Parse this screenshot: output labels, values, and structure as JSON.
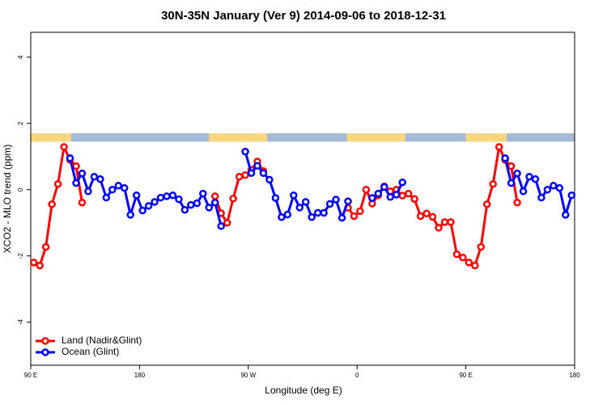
{
  "chart_data": {
    "type": "line",
    "title": "30N-35N January (Ver 9)   2014-09-06 to 2018-12-31",
    "x_label": "Longitude (deg E)",
    "y_label": "XCO2 - MLO trend (ppm)",
    "xlim": [
      90,
      540
    ],
    "ylim": [
      -5.3,
      4.75
    ],
    "xticks": [
      {
        "value": 90,
        "label": "90 E"
      },
      180,
      {
        "value": 270,
        "label": "90 W"
      },
      {
        "value": 360,
        "label": "0"
      },
      {
        "value": 450,
        "label": "90 E"
      },
      {
        "value": 540,
        "label": "180"
      }
    ],
    "yticks": [
      -4,
      -2,
      0,
      2,
      4
    ],
    "legend_position": "bottom-left",
    "strip_ylim": [
      1.45,
      1.7
    ],
    "strip_colors": {
      "land": "#f9d77e",
      "ocean": "#a3b9d6"
    },
    "land_bands": [
      [
        90,
        123.5
      ],
      [
        237.5,
        285.8
      ],
      [
        351.5,
        399.8
      ],
      [
        450,
        483.7
      ]
    ],
    "x": [
      92.5,
      97.5,
      102.5,
      107.5,
      112.5,
      117.5,
      122.5,
      127.5,
      132.5,
      137.5,
      142.5,
      147.5,
      152.5,
      157.5,
      162.5,
      167.5,
      172.5,
      177.5,
      182.5,
      187.5,
      192.5,
      197.5,
      202.5,
      207.5,
      212.5,
      217.5,
      222.5,
      227.5,
      232.5,
      237.5,
      242.5,
      247.5,
      252.5,
      257.5,
      262.5,
      267.5,
      272.5,
      277.5,
      282.5,
      287.5,
      292.5,
      297.5,
      302.5,
      307.5,
      312.5,
      317.5,
      322.5,
      327.5,
      332.5,
      337.5,
      342.5,
      347.5,
      352.5,
      357.5,
      362.5,
      367.5,
      372.5,
      377.5,
      382.5,
      387.5,
      392.5,
      397.5,
      402.5,
      407.5,
      412.5,
      417.5,
      422.5,
      427.5,
      432.5,
      437.5,
      442.5,
      447.5,
      452.5,
      457.5,
      462.5,
      467.5,
      472.5,
      477.5,
      482.5,
      487.5,
      492.5,
      497.5,
      502.5,
      507.5,
      512.5,
      517.5,
      522.5,
      527.5,
      532.5,
      537.5
    ],
    "series": [
      {
        "name": "Land (Nadir&Glint)",
        "color": "#ff0000",
        "values": [
          -2.2,
          -2.29,
          -1.73,
          -0.44,
          0.17,
          1.29,
          0.9,
          0.71,
          -0.39,
          null,
          null,
          null,
          null,
          null,
          null,
          null,
          null,
          null,
          null,
          null,
          null,
          null,
          null,
          null,
          null,
          null,
          null,
          null,
          null,
          null,
          -0.2,
          -0.71,
          -1.0,
          -0.27,
          0.39,
          0.44,
          0.6,
          0.85,
          0.56,
          null,
          null,
          null,
          null,
          null,
          null,
          null,
          null,
          null,
          null,
          null,
          null,
          null,
          -0.55,
          -0.8,
          -0.65,
          0.0,
          -0.42,
          -0.17,
          0.1,
          -0.05,
          0.0,
          -0.18,
          -0.12,
          -0.28,
          -0.8,
          -0.72,
          -0.82,
          -1.15,
          -0.98,
          -0.98,
          -1.95,
          -2.05,
          -2.2,
          -2.29,
          -1.73,
          -0.44,
          0.17,
          1.29,
          0.9,
          0.71,
          -0.39,
          null,
          null,
          null,
          null,
          null,
          null,
          null,
          null,
          null
        ]
      },
      {
        "name": "Ocean (Glint)",
        "color": "#0000ff",
        "values": [
          null,
          null,
          null,
          null,
          null,
          null,
          0.95,
          0.2,
          0.49,
          -0.05,
          0.39,
          0.32,
          -0.24,
          0.0,
          0.12,
          0.05,
          -0.76,
          -0.17,
          -0.63,
          -0.49,
          -0.37,
          -0.24,
          -0.2,
          -0.17,
          -0.29,
          -0.61,
          -0.46,
          -0.41,
          -0.12,
          -0.54,
          -0.39,
          -1.1,
          null,
          null,
          null,
          1.15,
          0.5,
          0.72,
          0.5,
          0.3,
          -0.25,
          -0.83,
          -0.75,
          -0.17,
          -0.54,
          -0.37,
          -0.83,
          -0.7,
          -0.7,
          -0.43,
          -0.3,
          -0.85,
          -0.35,
          null,
          null,
          null,
          -0.25,
          -0.12,
          0.08,
          -0.22,
          -0.15,
          0.22,
          null,
          null,
          null,
          null,
          null,
          null,
          null,
          null,
          null,
          null,
          null,
          null,
          null,
          null,
          null,
          null,
          0.95,
          0.2,
          0.49,
          -0.05,
          0.39,
          0.32,
          -0.24,
          0.0,
          0.12,
          0.05,
          -0.76,
          -0.17
        ]
      }
    ]
  }
}
